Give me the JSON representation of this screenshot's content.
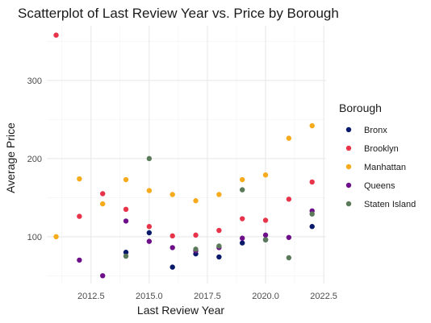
{
  "chart_data": {
    "type": "scatter",
    "title": "Scatterplot of Last Review Year vs. Price by Borough",
    "xlabel": "Last Review Year",
    "ylabel": "Average Price",
    "xlim": [
      2010.6,
      2022.6
    ],
    "ylim": [
      40,
      370
    ],
    "x_ticks": [
      2012.5,
      2015.0,
      2017.5,
      2020.0,
      2022.5
    ],
    "x_tick_labels": [
      "2012.5",
      "2015.0",
      "2017.5",
      "2020.0",
      "2022.5"
    ],
    "y_ticks": [
      100,
      200,
      300
    ],
    "y_tick_labels": [
      "100",
      "200",
      "300"
    ],
    "grid": true,
    "legend": {
      "title": "Borough",
      "placement": "right"
    },
    "series": [
      {
        "name": "Bronx",
        "color": "#0a1a6b",
        "points": [
          {
            "x": 2014,
            "y": 80
          },
          {
            "x": 2015,
            "y": 105
          },
          {
            "x": 2016,
            "y": 61
          },
          {
            "x": 2017,
            "y": 78
          },
          {
            "x": 2018,
            "y": 74
          },
          {
            "x": 2019,
            "y": 92
          },
          {
            "x": 2020,
            "y": 96
          },
          {
            "x": 2022,
            "y": 113
          }
        ]
      },
      {
        "name": "Brooklyn",
        "color": "#e8344a",
        "points": [
          {
            "x": 2011,
            "y": 358
          },
          {
            "x": 2012,
            "y": 126
          },
          {
            "x": 2013,
            "y": 155
          },
          {
            "x": 2014,
            "y": 135
          },
          {
            "x": 2015,
            "y": 113
          },
          {
            "x": 2016,
            "y": 101
          },
          {
            "x": 2017,
            "y": 102
          },
          {
            "x": 2018,
            "y": 108
          },
          {
            "x": 2019,
            "y": 123
          },
          {
            "x": 2020,
            "y": 121
          },
          {
            "x": 2021,
            "y": 148
          },
          {
            "x": 2022,
            "y": 170
          }
        ]
      },
      {
        "name": "Manhattan",
        "color": "#f5ab1c",
        "points": [
          {
            "x": 2011,
            "y": 100
          },
          {
            "x": 2012,
            "y": 174
          },
          {
            "x": 2013,
            "y": 142
          },
          {
            "x": 2014,
            "y": 173
          },
          {
            "x": 2015,
            "y": 159
          },
          {
            "x": 2016,
            "y": 154
          },
          {
            "x": 2017,
            "y": 146
          },
          {
            "x": 2018,
            "y": 154
          },
          {
            "x": 2019,
            "y": 173
          },
          {
            "x": 2020,
            "y": 179
          },
          {
            "x": 2021,
            "y": 226
          },
          {
            "x": 2022,
            "y": 242
          }
        ]
      },
      {
        "name": "Queens",
        "color": "#6e0f8a",
        "points": [
          {
            "x": 2012,
            "y": 70
          },
          {
            "x": 2013,
            "y": 50
          },
          {
            "x": 2014,
            "y": 120
          },
          {
            "x": 2015,
            "y": 94
          },
          {
            "x": 2016,
            "y": 86
          },
          {
            "x": 2017,
            "y": 82
          },
          {
            "x": 2018,
            "y": 86
          },
          {
            "x": 2019,
            "y": 98
          },
          {
            "x": 2020,
            "y": 102
          },
          {
            "x": 2021,
            "y": 99
          },
          {
            "x": 2022,
            "y": 133
          }
        ]
      },
      {
        "name": "Staten Island",
        "color": "#5a7a5a",
        "points": [
          {
            "x": 2014,
            "y": 75
          },
          {
            "x": 2015,
            "y": 200
          },
          {
            "x": 2017,
            "y": 84
          },
          {
            "x": 2018,
            "y": 88
          },
          {
            "x": 2019,
            "y": 160
          },
          {
            "x": 2020,
            "y": 96
          },
          {
            "x": 2021,
            "y": 73
          },
          {
            "x": 2022,
            "y": 129
          }
        ]
      }
    ]
  }
}
